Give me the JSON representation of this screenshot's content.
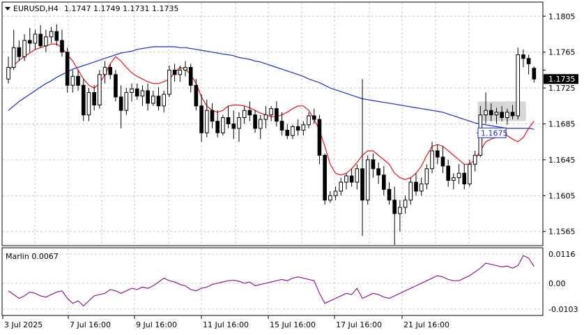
{
  "symbol_label": "EURUSD,H4",
  "ohlc": [
    "1.1747",
    "1.1749",
    "1.1731",
    "1.1735"
  ],
  "price_axis": {
    "ticks": [
      "1.1805",
      "1.1765",
      "1.1725",
      "1.1685",
      "1.1645",
      "1.1605",
      "1.1565"
    ],
    "current_price": "1.1735",
    "level_label": "1.1675"
  },
  "time_axis": {
    "ticks": [
      "3 Jul 2025",
      "7 Jul 16:00",
      "9 Jul 16:00",
      "11 Jul 16:00",
      "15 Jul 16:00",
      "17 Jul 16:00",
      "21 Jul 16:00"
    ]
  },
  "indicator": {
    "label": "Marlin 0.0067",
    "ticks": [
      "0.0116",
      "0.00",
      "-0.0103"
    ]
  },
  "colors": {
    "up_body": "#ffffff",
    "down_body": "#000000",
    "ma_slow": "#1f2fc8",
    "ma_fast": "#e0141e",
    "oscillator": "#8b1e8b",
    "highlight_box": "#c8c8c8",
    "level_line": "#1f2fc8"
  },
  "chart_data": {
    "type": "candlestick",
    "timeframe": "H4",
    "ylim": [
      1.155,
      1.182
    ],
    "candles": [
      [
        1.1735,
        1.176,
        1.173,
        1.1748
      ],
      [
        1.1748,
        1.179,
        1.1745,
        1.177
      ],
      [
        1.177,
        1.1778,
        1.1755,
        1.176
      ],
      [
        1.176,
        1.1785,
        1.1755,
        1.1778
      ],
      [
        1.1778,
        1.1792,
        1.1765,
        1.1775
      ],
      [
        1.1775,
        1.179,
        1.1768,
        1.1785
      ],
      [
        1.1785,
        1.1795,
        1.177,
        1.1772
      ],
      [
        1.1772,
        1.179,
        1.1765,
        1.1782
      ],
      [
        1.1782,
        1.1793,
        1.1775,
        1.1788
      ],
      [
        1.1788,
        1.1796,
        1.1772,
        1.1778
      ],
      [
        1.1778,
        1.179,
        1.176,
        1.1765
      ],
      [
        1.1765,
        1.177,
        1.172,
        1.1728
      ],
      [
        1.1728,
        1.1745,
        1.172,
        1.1738
      ],
      [
        1.1738,
        1.1745,
        1.1722,
        1.1728
      ],
      [
        1.1728,
        1.1735,
        1.1688,
        1.1695
      ],
      [
        1.1695,
        1.1725,
        1.1688,
        1.172
      ],
      [
        1.172,
        1.1728,
        1.17,
        1.1706
      ],
      [
        1.1706,
        1.1745,
        1.1702,
        1.174
      ],
      [
        1.174,
        1.1755,
        1.173,
        1.1748
      ],
      [
        1.1748,
        1.1752,
        1.1735,
        1.174
      ],
      [
        1.174,
        1.1745,
        1.171,
        1.1715
      ],
      [
        1.1715,
        1.1728,
        1.168,
        1.17
      ],
      [
        1.17,
        1.1725,
        1.1695,
        1.172
      ],
      [
        1.172,
        1.173,
        1.171,
        1.1724
      ],
      [
        1.1724,
        1.173,
        1.1712,
        1.1716
      ],
      [
        1.1716,
        1.1728,
        1.1705,
        1.1722
      ],
      [
        1.1722,
        1.173,
        1.17,
        1.1708
      ],
      [
        1.1708,
        1.1722,
        1.1705,
        1.1716
      ],
      [
        1.1716,
        1.1726,
        1.17,
        1.1705
      ],
      [
        1.1705,
        1.1722,
        1.1698,
        1.1718
      ],
      [
        1.1718,
        1.175,
        1.1715,
        1.1745
      ],
      [
        1.1745,
        1.1752,
        1.1732,
        1.174
      ],
      [
        1.174,
        1.175,
        1.1732,
        1.1745
      ],
      [
        1.1745,
        1.1755,
        1.1738,
        1.1748
      ],
      [
        1.1748,
        1.1752,
        1.172,
        1.1728
      ],
      [
        1.1728,
        1.1735,
        1.17,
        1.1705
      ],
      [
        1.1705,
        1.1718,
        1.1665,
        1.1675
      ],
      [
        1.1675,
        1.1712,
        1.167,
        1.17
      ],
      [
        1.17,
        1.1708,
        1.168,
        1.1688
      ],
      [
        1.1688,
        1.17,
        1.167,
        1.1675
      ],
      [
        1.1675,
        1.1695,
        1.1672,
        1.1692
      ],
      [
        1.1692,
        1.1705,
        1.168,
        1.1685
      ],
      [
        1.1685,
        1.17,
        1.1668,
        1.168
      ],
      [
        1.168,
        1.1698,
        1.1665,
        1.1692
      ],
      [
        1.1692,
        1.1705,
        1.1685,
        1.17
      ],
      [
        1.17,
        1.171,
        1.1688,
        1.1695
      ],
      [
        1.1695,
        1.17,
        1.1675,
        1.168
      ],
      [
        1.168,
        1.1695,
        1.1668,
        1.169
      ],
      [
        1.169,
        1.1705,
        1.168,
        1.1695
      ],
      [
        1.1695,
        1.1705,
        1.1688,
        1.1702
      ],
      [
        1.1702,
        1.171,
        1.1682,
        1.1688
      ],
      [
        1.1688,
        1.1698,
        1.1672,
        1.1678
      ],
      [
        1.1678,
        1.1685,
        1.1668,
        1.1672
      ],
      [
        1.1672,
        1.1684,
        1.1668,
        1.1682
      ],
      [
        1.1682,
        1.169,
        1.1672,
        1.1678
      ],
      [
        1.1678,
        1.1688,
        1.1672,
        1.1684
      ],
      [
        1.1684,
        1.1698,
        1.168,
        1.1694
      ],
      [
        1.1694,
        1.1702,
        1.1685,
        1.169
      ],
      [
        1.169,
        1.1695,
        1.164,
        1.165
      ],
      [
        1.165,
        1.1652,
        1.1595,
        1.16
      ],
      [
        1.16,
        1.161,
        1.1597,
        1.1605
      ],
      [
        1.1605,
        1.1615,
        1.16,
        1.161
      ],
      [
        1.161,
        1.1625,
        1.1605,
        1.162
      ],
      [
        1.162,
        1.163,
        1.1612,
        1.1627
      ],
      [
        1.1627,
        1.1635,
        1.1615,
        1.162
      ],
      [
        1.162,
        1.164,
        1.1612,
        1.1635
      ],
      [
        1.1635,
        1.1735,
        1.156,
        1.16
      ],
      [
        1.16,
        1.165,
        1.1595,
        1.1645
      ],
      [
        1.1645,
        1.1652,
        1.1625,
        1.1635
      ],
      [
        1.1635,
        1.1642,
        1.1618,
        1.1628
      ],
      [
        1.1628,
        1.1638,
        1.1605,
        1.1612
      ],
      [
        1.1612,
        1.162,
        1.1595,
        1.16
      ],
      [
        1.16,
        1.1615,
        1.155,
        1.1585
      ],
      [
        1.1585,
        1.16,
        1.1565,
        1.1592
      ],
      [
        1.1592,
        1.1605,
        1.1585,
        1.16
      ],
      [
        1.16,
        1.1625,
        1.1595,
        1.162
      ],
      [
        1.162,
        1.163,
        1.1605,
        1.161
      ],
      [
        1.161,
        1.1625,
        1.1605,
        1.1618
      ],
      [
        1.1618,
        1.164,
        1.1612,
        1.1635
      ],
      [
        1.1635,
        1.1665,
        1.163,
        1.1655
      ],
      [
        1.1655,
        1.1662,
        1.164,
        1.1648
      ],
      [
        1.1648,
        1.166,
        1.163,
        1.1638
      ],
      [
        1.1638,
        1.1645,
        1.1615,
        1.1622
      ],
      [
        1.1622,
        1.163,
        1.1612,
        1.1625
      ],
      [
        1.1625,
        1.164,
        1.1618,
        1.163
      ],
      [
        1.163,
        1.164,
        1.1612,
        1.1618
      ],
      [
        1.1618,
        1.1645,
        1.1615,
        1.164
      ],
      [
        1.164,
        1.1655,
        1.1632,
        1.165
      ],
      [
        1.165,
        1.1705,
        1.1648,
        1.1695
      ],
      [
        1.1695,
        1.172,
        1.1685,
        1.17
      ],
      [
        1.17,
        1.1708,
        1.1688,
        1.1695
      ],
      [
        1.1695,
        1.1703,
        1.1685,
        1.1698
      ],
      [
        1.1698,
        1.1705,
        1.1688,
        1.1692
      ],
      [
        1.1692,
        1.1702,
        1.1684,
        1.1698
      ],
      [
        1.1698,
        1.1706,
        1.169,
        1.1694
      ],
      [
        1.1694,
        1.177,
        1.169,
        1.1762
      ],
      [
        1.1762,
        1.1768,
        1.1748,
        1.1758
      ],
      [
        1.1758,
        1.1762,
        1.174,
        1.1752
      ],
      [
        1.1747,
        1.1749,
        1.1731,
        1.1735
      ]
    ],
    "ma_fast": [
      1.1745,
      1.175,
      1.1756,
      1.176,
      1.1764,
      1.1768,
      1.177,
      1.1772,
      1.1774,
      1.1774,
      1.177,
      1.1762,
      1.1755,
      1.1745,
      1.1735,
      1.1728,
      1.1725,
      1.173,
      1.174,
      1.1752,
      1.176,
      1.1755,
      1.1748,
      1.1742,
      1.1738,
      1.1735,
      1.1732,
      1.173,
      1.173,
      1.1732,
      1.1735,
      1.1742,
      1.1748,
      1.1746,
      1.174,
      1.173,
      1.1715,
      1.1705,
      1.17,
      1.1698,
      1.17,
      1.1705,
      1.1706,
      1.1706,
      1.1705,
      1.1703,
      1.17,
      1.1697,
      1.1695,
      1.1693,
      1.1693,
      1.1695,
      1.1698,
      1.1702,
      1.1705,
      1.1705,
      1.17,
      1.169,
      1.1678,
      1.166,
      1.164,
      1.163,
      1.1628,
      1.163,
      1.1635,
      1.1642,
      1.165,
      1.1655,
      1.1655,
      1.165,
      1.1645,
      1.164,
      1.163,
      1.1625,
      1.1623,
      1.1625,
      1.163,
      1.1638,
      1.165,
      1.166,
      1.1662,
      1.166,
      1.1655,
      1.165,
      1.1645,
      1.164,
      1.164,
      1.1645,
      1.1655,
      1.1665,
      1.1668,
      1.167,
      1.1672,
      1.1672,
      1.1668,
      1.1665,
      1.167,
      1.168,
      1.1688
    ],
    "ma_slow": [
      1.17,
      1.1705,
      1.171,
      1.1714,
      1.1718,
      1.1722,
      1.1726,
      1.173,
      1.1733,
      1.1737,
      1.174,
      1.1743,
      1.1746,
      1.1748,
      1.175,
      1.1752,
      1.1754,
      1.1756,
      1.1758,
      1.176,
      1.1762,
      1.1764,
      1.1765,
      1.1766,
      1.1768,
      1.1769,
      1.177,
      1.1771,
      1.1771,
      1.1771,
      1.1771,
      1.1771,
      1.177,
      1.177,
      1.1769,
      1.1768,
      1.1767,
      1.1766,
      1.1765,
      1.1764,
      1.1763,
      1.1762,
      1.1761,
      1.1759,
      1.1758,
      1.1757,
      1.1755,
      1.1754,
      1.1752,
      1.175,
      1.1748,
      1.1746,
      1.1744,
      1.1742,
      1.174,
      1.1738,
      1.1735,
      1.1733,
      1.1731,
      1.1728,
      1.1725,
      1.1723,
      1.1721,
      1.1719,
      1.1717,
      1.1715,
      1.1713,
      1.1712,
      1.1711,
      1.171,
      1.1709,
      1.1708,
      1.1707,
      1.1706,
      1.1705,
      1.1704,
      1.1703,
      1.1702,
      1.1701,
      1.17,
      1.1699,
      1.1698,
      1.1696,
      1.1694,
      1.1692,
      1.169,
      1.1688,
      1.1686,
      1.1685,
      1.1684,
      1.1683,
      1.1682,
      1.1681,
      1.168,
      1.168,
      1.168,
      1.168,
      1.168,
      1.1679
    ],
    "horizontal_level": 1.1675,
    "highlight_range": {
      "from_index": 88,
      "to_index": 96,
      "low": 1.1688,
      "high": 1.171
    },
    "oscillator": {
      "name": "Marlin",
      "ylim": [
        -0.0103,
        0.0116
      ],
      "values": [
        -0.003,
        -0.0045,
        -0.006,
        -0.005,
        -0.0035,
        -0.004,
        -0.005,
        -0.0055,
        -0.0045,
        -0.0035,
        -0.003,
        -0.006,
        -0.008,
        -0.007,
        -0.009,
        -0.007,
        -0.005,
        -0.0045,
        -0.004,
        -0.0025,
        -0.003,
        -0.004,
        -0.003,
        -0.002,
        -0.0025,
        -0.0015,
        -0.002,
        -0.001,
        0.0005,
        0.002,
        0.001,
        0.0005,
        -0.0005,
        -0.001,
        -0.0025,
        -0.003,
        -0.002,
        -0.0015,
        -0.0005,
        0.0,
        0.0005,
        0.001,
        0.0012,
        0.0008,
        0.0,
        0.0005,
        -0.001,
        -0.0005,
        0.0,
        0.0005,
        0.001,
        0.0015,
        0.001,
        0.002,
        0.0025,
        0.002,
        0.0015,
        0.001,
        -0.004,
        -0.008,
        -0.007,
        -0.006,
        -0.005,
        -0.004,
        -0.0045,
        -0.002,
        -0.006,
        -0.005,
        -0.004,
        -0.0045,
        -0.0055,
        -0.006,
        -0.005,
        -0.004,
        -0.003,
        -0.002,
        -0.001,
        0.0,
        0.001,
        0.002,
        0.003,
        0.0025,
        0.0015,
        0.001,
        0.001,
        0.002,
        0.003,
        0.0045,
        0.006,
        0.008,
        0.0075,
        0.007,
        0.0065,
        0.0068,
        0.006,
        0.007,
        0.011,
        0.01,
        0.0067
      ]
    }
  }
}
